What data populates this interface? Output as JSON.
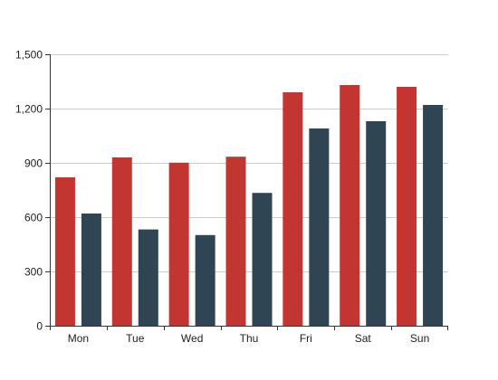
{
  "chart_data": {
    "type": "bar",
    "categories": [
      "Mon",
      "Tue",
      "Wed",
      "Thu",
      "Fri",
      "Sat",
      "Sun"
    ],
    "series": [
      {
        "values": [
          820,
          930,
          901,
          934,
          1290,
          1330,
          1320
        ],
        "color": "#c23531"
      },
      {
        "values": [
          620,
          532,
          501,
          734,
          1090,
          1130,
          1220
        ],
        "color": "#2f4554"
      }
    ],
    "yticks": [
      0,
      300,
      600,
      900,
      1200,
      1500
    ],
    "ytick_labels": [
      "0",
      "300",
      "600",
      "900",
      "1,200",
      "1,500"
    ],
    "ylim": [
      0,
      1500
    ],
    "grid": true,
    "title": "",
    "xlabel": "",
    "ylabel": ""
  }
}
